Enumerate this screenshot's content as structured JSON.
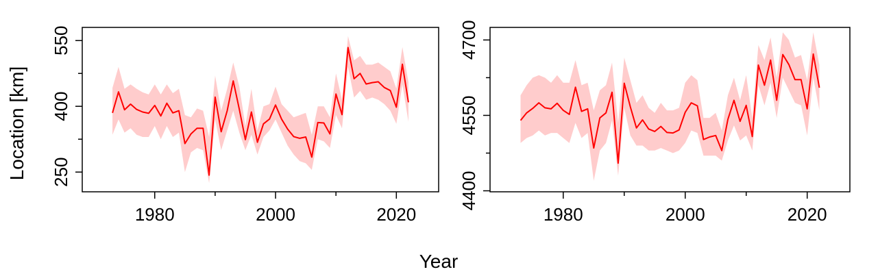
{
  "figure": {
    "xlabel": "Year",
    "ylabel": "Location [km]"
  },
  "colors": {
    "line": "#ff0000",
    "band": "#ffcccc",
    "axis": "#000000"
  },
  "chart_data": [
    {
      "type": "line",
      "xlabel": "Year",
      "ylabel": "Location [km]",
      "xlim": [
        1968,
        2027
      ],
      "ylim": [
        205,
        580
      ],
      "xticks": [
        1980,
        2000,
        2020
      ],
      "xminor": [
        1990,
        2010
      ],
      "yticks": [
        250,
        400,
        550
      ],
      "yminor": [
        325,
        475
      ],
      "tick_labels_x": [
        "1980",
        "2000",
        "2020"
      ],
      "tick_labels_y": [
        "250",
        "400",
        "550"
      ],
      "grid": false,
      "series": [
        {
          "x": [
            1973,
            1974,
            1975,
            1976,
            1977,
            1978,
            1979,
            1980,
            1981,
            1982,
            1983,
            1984,
            1985,
            1986,
            1987,
            1988,
            1989,
            1990,
            1991,
            1992,
            1993,
            1994,
            1995,
            1996,
            1997,
            1998,
            1999,
            2000,
            2001,
            2002,
            2003,
            2004,
            2005,
            2006,
            2007,
            2008,
            2009,
            2010,
            2011,
            2012,
            2013,
            2014,
            2015,
            2016,
            2017,
            2018,
            2019,
            2020,
            2021,
            2022
          ],
          "y": [
            385,
            433,
            392,
            405,
            393,
            387,
            384,
            402,
            378,
            407,
            385,
            390,
            315,
            337,
            350,
            350,
            243,
            421,
            342,
            390,
            458,
            393,
            324,
            387,
            318,
            360,
            371,
            403,
            371,
            348,
            331,
            327,
            330,
            284,
            363,
            362,
            337,
            428,
            381,
            534,
            463,
            475,
            451,
            454,
            456,
            443,
            436,
            398,
            496,
            409
          ],
          "lower": [
            335,
            370,
            340,
            350,
            335,
            330,
            330,
            355,
            325,
            355,
            330,
            340,
            250,
            295,
            305,
            300,
            225,
            370,
            300,
            345,
            390,
            340,
            300,
            335,
            290,
            330,
            345,
            370,
            340,
            310,
            290,
            275,
            270,
            255,
            325,
            320,
            305,
            380,
            350,
            490,
            420,
            435,
            415,
            420,
            415,
            405,
            390,
            360,
            450,
            365
          ],
          "upper": [
            442,
            490,
            440,
            450,
            440,
            432,
            427,
            450,
            427,
            450,
            430,
            440,
            380,
            375,
            395,
            390,
            330,
            470,
            390,
            440,
            500,
            445,
            355,
            440,
            345,
            400,
            405,
            445,
            405,
            390,
            375,
            380,
            385,
            335,
            400,
            400,
            375,
            475,
            415,
            560,
            505,
            515,
            495,
            495,
            500,
            490,
            480,
            440,
            535,
            455
          ]
        }
      ]
    },
    {
      "type": "line",
      "xlabel": "Year",
      "ylabel": "",
      "xlim": [
        1968,
        2027
      ],
      "ylim": [
        4398,
        4725
      ],
      "xticks": [
        1980,
        2000,
        2020
      ],
      "xminor": [
        1990,
        2010
      ],
      "yticks": [
        4400,
        4550,
        4700
      ],
      "yminor": [
        4475,
        4625
      ],
      "tick_labels_x": [
        "1980",
        "2000",
        "2020"
      ],
      "tick_labels_y": [
        "4400",
        "4550",
        "4700"
      ],
      "grid": false,
      "series": [
        {
          "x": [
            1973,
            1974,
            1975,
            1976,
            1977,
            1978,
            1979,
            1980,
            1981,
            1982,
            1983,
            1984,
            1985,
            1986,
            1987,
            1988,
            1989,
            1990,
            1991,
            1992,
            1993,
            1994,
            1995,
            1996,
            1997,
            1998,
            1999,
            2000,
            2001,
            2002,
            2003,
            2004,
            2005,
            2006,
            2007,
            2008,
            2009,
            2010,
            2011,
            2012,
            2013,
            2014,
            2015,
            2016,
            2017,
            2018,
            2019,
            2020,
            2021,
            2022
          ],
          "y": [
            4540,
            4555,
            4564,
            4575,
            4565,
            4563,
            4574,
            4560,
            4552,
            4606,
            4558,
            4563,
            4485,
            4545,
            4555,
            4596,
            4455,
            4614,
            4567,
            4525,
            4541,
            4523,
            4518,
            4528,
            4516,
            4515,
            4521,
            4556,
            4575,
            4569,
            4502,
            4507,
            4510,
            4480,
            4542,
            4580,
            4538,
            4570,
            4508,
            4650,
            4610,
            4660,
            4580,
            4671,
            4651,
            4621,
            4621,
            4563,
            4672,
            4605
          ],
          "lower": [
            4495,
            4505,
            4510,
            4520,
            4510,
            4515,
            4515,
            4505,
            4495,
            4535,
            4505,
            4515,
            4420,
            4480,
            4495,
            4540,
            4430,
            4565,
            4510,
            4490,
            4490,
            4480,
            4480,
            4485,
            4480,
            4475,
            4480,
            4495,
            4520,
            4515,
            4470,
            4470,
            4470,
            4460,
            4500,
            4530,
            4500,
            4510,
            4480,
            4610,
            4570,
            4615,
            4545,
            4625,
            4600,
            4575,
            4570,
            4510,
            4625,
            4560
          ],
          "upper": [
            4590,
            4610,
            4625,
            4630,
            4625,
            4615,
            4630,
            4615,
            4615,
            4660,
            4610,
            4615,
            4560,
            4600,
            4610,
            4655,
            4535,
            4665,
            4620,
            4575,
            4590,
            4565,
            4555,
            4575,
            4560,
            4560,
            4565,
            4615,
            4630,
            4620,
            4545,
            4545,
            4555,
            4520,
            4590,
            4625,
            4580,
            4630,
            4545,
            4690,
            4660,
            4705,
            4625,
            4715,
            4700,
            4665,
            4670,
            4620,
            4715,
            4650
          ]
        }
      ]
    }
  ]
}
